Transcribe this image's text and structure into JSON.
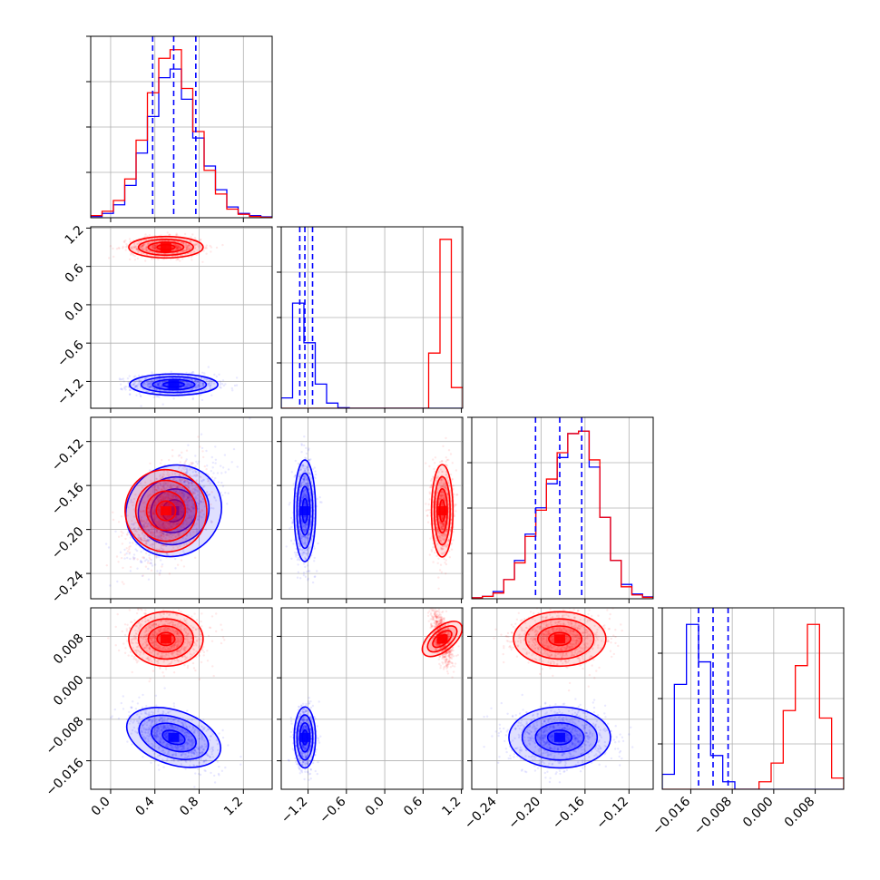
{
  "chart_data": {
    "type": "corner",
    "title": "",
    "colors": {
      "series_a": "#0000ff",
      "series_b": "#ff0000",
      "grid": "#b0b0b0",
      "axes": "#000000"
    },
    "series": [
      {
        "color": "#0000ff",
        "means": [
          0.57,
          -1.25,
          -0.183,
          -0.0115
        ],
        "stds": [
          0.19,
          0.08,
          0.022,
          0.0028
        ],
        "correlations": {
          "0-2": 0.55,
          "0-3": -0.55,
          "2-3": 0.0,
          "1-2": 0.0,
          "1-3": 0.0,
          "0-1": 0.0
        },
        "quantile_lines": [
          [
            0.38,
            0.57,
            0.77
          ],
          [
            -1.33,
            -1.25,
            -1.13
          ],
          [
            -0.205,
            -0.183,
            -0.163
          ],
          [
            -0.0145,
            -0.0117,
            -0.0088
          ]
        ],
        "hist_counts": [
          [
            3,
            10,
            30,
            75,
            150,
            235,
            325,
            345,
            275,
            185,
            120,
            65,
            25,
            10,
            5,
            2
          ],
          [
            60,
            610,
            380,
            140,
            30,
            3,
            0,
            0,
            0,
            0,
            0,
            0,
            0,
            0,
            0,
            0
          ],
          [
            2,
            5,
            15,
            40,
            80,
            135,
            190,
            240,
            295,
            345,
            350,
            275,
            170,
            80,
            30,
            10,
            4
          ],
          [
            20,
            140,
            220,
            170,
            45,
            10,
            0,
            0,
            0,
            0,
            0,
            0,
            0,
            0,
            0
          ]
        ]
      },
      {
        "color": "#ff0000",
        "means": [
          0.5,
          0.9,
          -0.183,
          0.0075
        ],
        "stds": [
          0.16,
          0.08,
          0.02,
          0.0025
        ],
        "correlations": {
          "0-2": 0.5,
          "0-3": 0.0,
          "2-3": 0.0,
          "1-2": 0.0,
          "1-3": -0.6,
          "0-1": 0.0
        },
        "hist_counts": [
          [
            5,
            15,
            40,
            90,
            180,
            290,
            370,
            390,
            300,
            200,
            110,
            55,
            20,
            8,
            3,
            1
          ],
          [
            0,
            0,
            0,
            0,
            0,
            0,
            0,
            0,
            0,
            0,
            0,
            0,
            0,
            320,
            980,
            120
          ],
          [
            2,
            5,
            12,
            40,
            75,
            130,
            185,
            250,
            305,
            345,
            350,
            290,
            170,
            80,
            25,
            8,
            3
          ],
          [
            0,
            0,
            0,
            0,
            0,
            0,
            0,
            0,
            10,
            35,
            105,
            165,
            220,
            95,
            15
          ]
        ]
      }
    ],
    "axes": [
      {
        "range": [
          -0.18,
          1.46
        ],
        "ticks": [
          0.0,
          0.4,
          0.8,
          1.2
        ],
        "tick_labels": [
          "0.0",
          "0.4",
          "0.8",
          "1.2"
        ]
      },
      {
        "range": [
          -1.62,
          1.22
        ],
        "ticks": [
          -1.2,
          -0.6,
          0.0,
          0.6,
          1.2
        ],
        "tick_labels": [
          "−1.2",
          "−0.6",
          "0.0",
          "0.6",
          "1.2"
        ]
      },
      {
        "range": [
          -0.263,
          -0.098
        ],
        "ticks": [
          -0.24,
          -0.2,
          -0.16,
          -0.12
        ],
        "tick_labels": [
          "−0.24",
          "−0.20",
          "−0.16",
          "−0.12"
        ]
      },
      {
        "range": [
          -0.0215,
          0.0135
        ],
        "ticks": [
          -0.016,
          -0.008,
          0.0,
          0.008
        ],
        "tick_labels": [
          "−0.016",
          "−0.008",
          "0.000",
          "0.008"
        ]
      }
    ],
    "diagonal_hist_max": [
      400,
      1000,
      360,
      230
    ],
    "grid": true,
    "legend": "none"
  }
}
